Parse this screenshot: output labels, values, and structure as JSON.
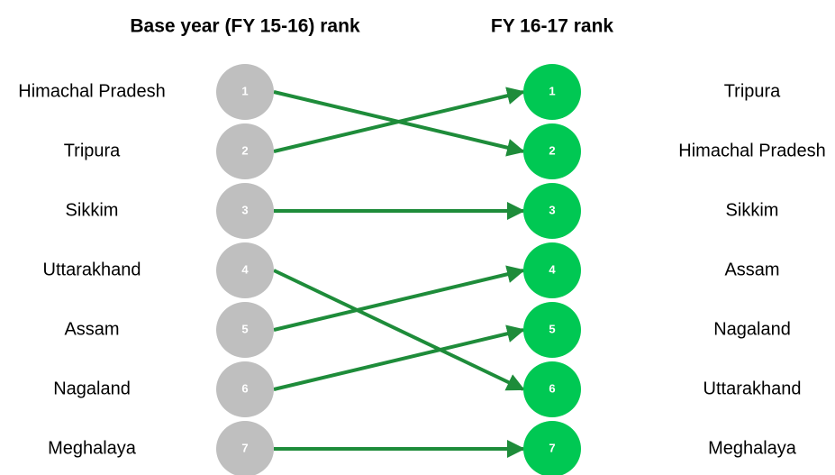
{
  "headers": {
    "base": "Base year (FY 15-16) rank",
    "current": "FY 16-17 rank"
  },
  "left": [
    {
      "rank": 1,
      "state": "Himachal Pradesh"
    },
    {
      "rank": 2,
      "state": "Tripura"
    },
    {
      "rank": 3,
      "state": "Sikkim"
    },
    {
      "rank": 4,
      "state": "Uttarakhand"
    },
    {
      "rank": 5,
      "state": "Assam"
    },
    {
      "rank": 6,
      "state": "Nagaland"
    },
    {
      "rank": 7,
      "state": "Meghalaya"
    }
  ],
  "right": [
    {
      "rank": 1,
      "state": "Tripura"
    },
    {
      "rank": 2,
      "state": "Himachal Pradesh"
    },
    {
      "rank": 3,
      "state": "Sikkim"
    },
    {
      "rank": 4,
      "state": "Assam"
    },
    {
      "rank": 5,
      "state": "Nagaland"
    },
    {
      "rank": 6,
      "state": "Uttarakhand"
    },
    {
      "rank": 7,
      "state": "Meghalaya"
    }
  ]
}
